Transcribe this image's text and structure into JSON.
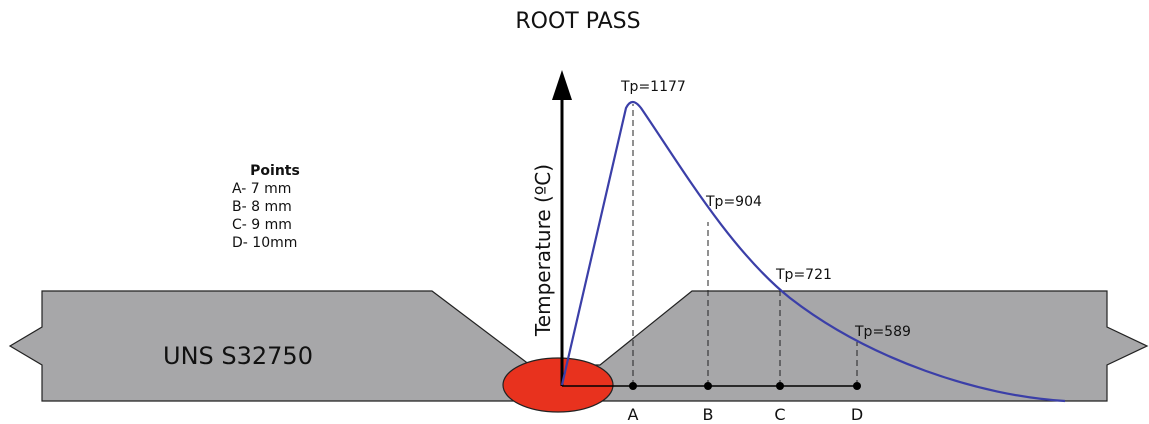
{
  "title": "ROOT PASS",
  "points_legend": {
    "title": "Points",
    "items": [
      "A- 7 mm",
      "B- 8 mm",
      "C- 9 mm",
      "D- 10mm"
    ]
  },
  "material": "UNS S32750",
  "axis_label": "Temperature (ºC)",
  "peak_labels": [
    "Tp=1177",
    "Tp=904",
    "Tp=721",
    "Tp=589"
  ],
  "point_labels": [
    "A",
    "B",
    "C",
    "D"
  ]
}
